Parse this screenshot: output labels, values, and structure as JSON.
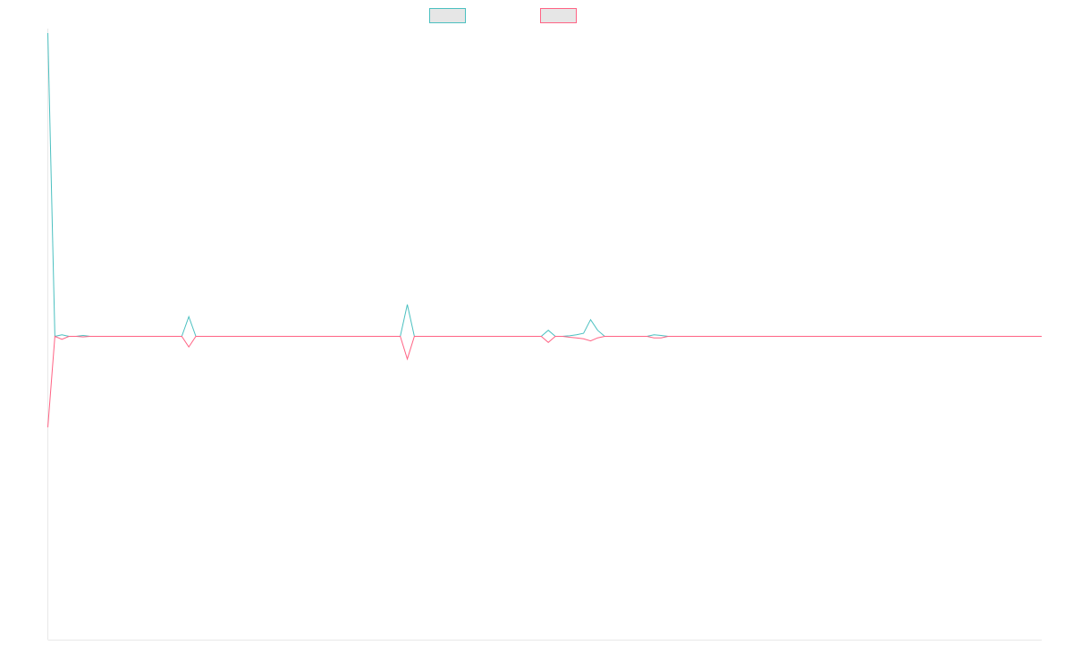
{
  "chart_data": {
    "type": "line",
    "title": "",
    "xlabel": "",
    "ylabel": "",
    "grid": false,
    "legend": "top-center",
    "xlim": [
      0,
      141
    ],
    "ylim": [
      -100,
      100
    ],
    "series": [
      {
        "color": "#4bc0c0",
        "values": [
          100,
          0,
          0.5,
          0,
          0,
          0.3,
          0,
          0,
          0,
          0,
          0,
          0,
          0,
          0,
          0,
          0,
          0,
          0,
          0,
          0,
          6.5,
          0,
          0,
          0,
          0,
          0,
          0,
          0,
          0,
          0,
          0,
          0,
          0,
          0,
          0,
          0,
          0,
          0,
          0,
          0,
          0,
          0,
          0,
          0,
          0,
          0,
          0,
          0,
          0,
          0,
          0,
          10.5,
          0,
          0,
          0,
          0,
          0,
          0,
          0,
          0,
          0,
          0,
          0,
          0,
          0,
          0,
          0,
          0,
          0,
          0,
          0,
          2,
          0,
          0,
          0.2,
          0.5,
          1,
          5.5,
          2,
          0,
          0,
          0,
          0,
          0,
          0,
          0,
          0.5,
          0.3,
          0,
          0,
          0,
          0,
          0,
          0,
          0,
          0,
          0,
          0,
          0,
          0,
          0,
          0,
          0,
          0,
          0,
          0,
          0,
          0,
          0,
          0,
          0,
          0,
          0,
          0,
          0,
          0,
          0,
          0,
          0,
          0,
          0,
          0,
          0,
          0,
          0,
          0,
          0,
          0,
          0,
          0,
          0,
          0,
          0,
          0,
          0,
          0,
          0,
          0,
          0,
          0,
          0,
          0
        ]
      },
      {
        "color": "#ff6384",
        "values": [
          -30,
          0,
          -1,
          0,
          0,
          -0.2,
          0,
          0,
          0,
          0,
          0,
          0,
          0,
          0,
          0,
          0,
          0,
          0,
          0,
          0,
          -3.5,
          0,
          0,
          0,
          0,
          0,
          0,
          0,
          0,
          0,
          0,
          0,
          0,
          0,
          0,
          0,
          0,
          0,
          0,
          0,
          0,
          0,
          0,
          0,
          0,
          0,
          0,
          0,
          0,
          0,
          0,
          -7.5,
          0,
          0,
          0,
          0,
          0,
          0,
          0,
          0,
          0,
          0,
          0,
          0,
          0,
          0,
          0,
          0,
          0,
          0,
          0,
          -2,
          0,
          0,
          -0.3,
          -0.5,
          -0.8,
          -1.5,
          -0.5,
          0,
          0,
          0,
          0,
          0,
          0,
          0,
          -0.5,
          -0.5,
          0,
          0,
          0,
          0,
          0,
          0,
          0,
          0,
          0,
          0,
          0,
          0,
          0,
          0,
          0,
          0,
          0,
          0,
          0,
          0,
          0,
          0,
          0,
          0,
          0,
          0,
          0,
          0,
          0,
          0,
          0,
          0,
          0,
          0,
          0,
          0,
          0,
          0,
          0,
          0,
          0,
          0,
          0,
          0,
          0,
          0,
          0,
          0,
          0,
          0,
          0,
          0,
          0,
          0
        ]
      }
    ]
  }
}
